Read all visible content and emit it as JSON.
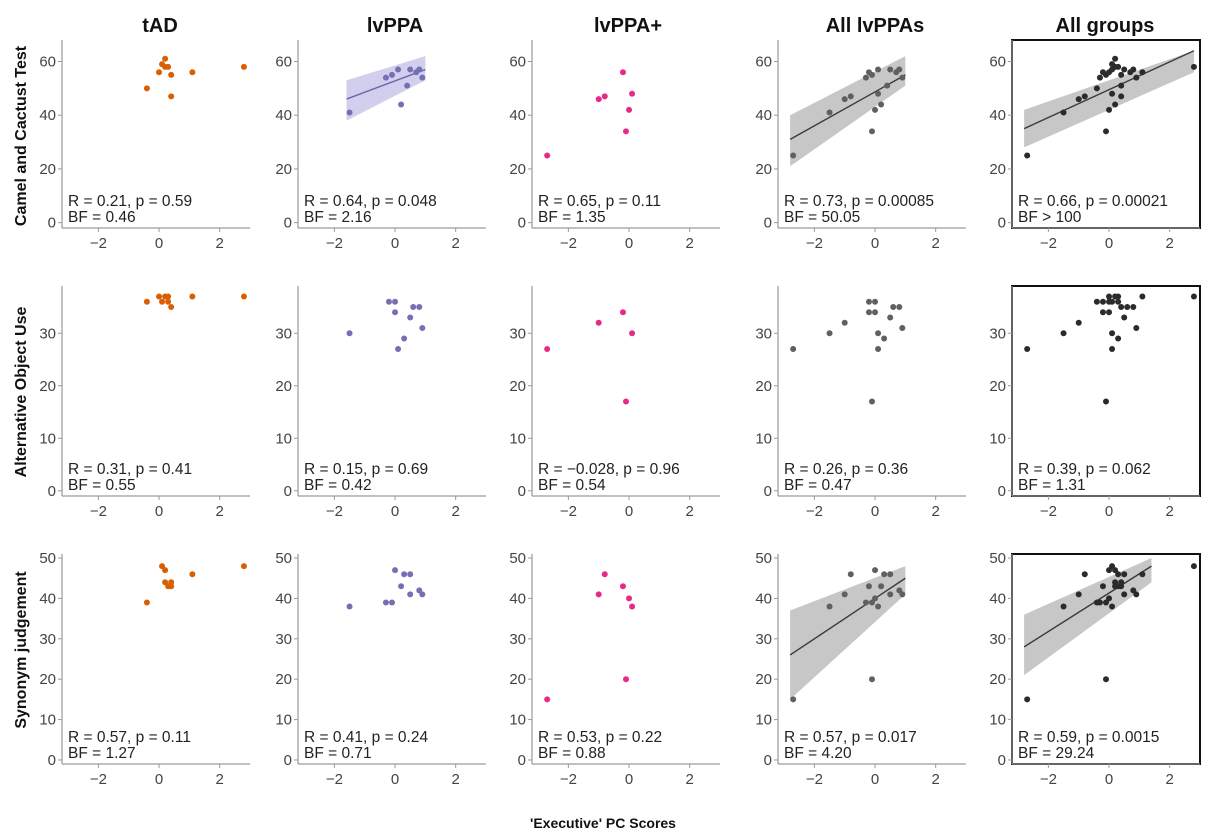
{
  "figure": {
    "x_axis_label": "'Executive' PC Scores",
    "columns": [
      "tAD",
      "lvPPA",
      "lvPPA+",
      "All lvPPAs",
      "All groups"
    ],
    "rows": [
      "Camel and Cactust Test",
      "Alternative Object Use",
      "Synonym judgement"
    ]
  },
  "colors": {
    "tAD": "#d95f02",
    "lvPPA": "#7570b3",
    "lvPPA+": "#e7298a",
    "All lvPPAs": "#606060",
    "All groups": "#2b2b2b",
    "ribbon_lvPPA": "#c9c7ea",
    "ribbon_gray": "#bdbdbd",
    "axis": "#9a9a9a"
  },
  "chart_data": [
    {
      "type": "scatter",
      "row": 0,
      "col": 0,
      "xlim": [
        -3.2,
        3.0
      ],
      "ylim": [
        -2,
        68
      ],
      "yticks": [
        0,
        20,
        40,
        60
      ],
      "xticks": [
        -2,
        0,
        2
      ],
      "points": [
        [
          -0.4,
          50
        ],
        [
          0.0,
          56
        ],
        [
          0.1,
          59
        ],
        [
          0.2,
          61
        ],
        [
          0.2,
          58
        ],
        [
          0.3,
          58
        ],
        [
          0.4,
          47
        ],
        [
          0.4,
          55
        ],
        [
          1.1,
          56
        ],
        [
          2.8,
          58
        ]
      ],
      "fit": null,
      "stat": "R = 0.21, p = 0.59",
      "bf": "BF = 0.46"
    },
    {
      "type": "scatter",
      "row": 0,
      "col": 1,
      "xlim": [
        -3.2,
        3.0
      ],
      "ylim": [
        -2,
        68
      ],
      "yticks": [
        0,
        20,
        40,
        60
      ],
      "xticks": [
        -2,
        0,
        2
      ],
      "points": [
        [
          -1.5,
          41
        ],
        [
          -0.3,
          54
        ],
        [
          -0.1,
          55
        ],
        [
          0.1,
          57
        ],
        [
          0.2,
          44
        ],
        [
          0.4,
          51
        ],
        [
          0.5,
          57
        ],
        [
          0.7,
          56
        ],
        [
          0.8,
          57
        ],
        [
          0.9,
          54
        ]
      ],
      "fit": {
        "x": [
          -1.6,
          1.0
        ],
        "y": [
          46,
          57
        ],
        "lower": [
          38,
          53
        ],
        "upper": [
          53,
          62
        ]
      },
      "stat": "R = 0.64, p = 0.048",
      "bf": "BF = 2.16"
    },
    {
      "type": "scatter",
      "row": 0,
      "col": 2,
      "xlim": [
        -3.2,
        3.0
      ],
      "ylim": [
        -2,
        68
      ],
      "yticks": [
        0,
        20,
        40,
        60
      ],
      "xticks": [
        -2,
        0,
        2
      ],
      "points": [
        [
          -2.7,
          25
        ],
        [
          -1.0,
          46
        ],
        [
          -0.8,
          47
        ],
        [
          -0.2,
          56
        ],
        [
          -0.1,
          34
        ],
        [
          0.0,
          42
        ],
        [
          0.1,
          48
        ]
      ],
      "fit": null,
      "stat": "R = 0.65, p = 0.11",
      "bf": "BF = 1.35"
    },
    {
      "type": "scatter",
      "row": 0,
      "col": 3,
      "xlim": [
        -3.2,
        3.0
      ],
      "ylim": [
        -2,
        68
      ],
      "yticks": [
        0,
        20,
        40,
        60
      ],
      "xticks": [
        -2,
        0,
        2
      ],
      "points": [
        [
          -2.7,
          25
        ],
        [
          -1.5,
          41
        ],
        [
          -1.0,
          46
        ],
        [
          -0.8,
          47
        ],
        [
          -0.3,
          54
        ],
        [
          -0.2,
          56
        ],
        [
          -0.1,
          34
        ],
        [
          -0.1,
          55
        ],
        [
          0.0,
          42
        ],
        [
          0.1,
          57
        ],
        [
          0.1,
          48
        ],
        [
          0.2,
          44
        ],
        [
          0.4,
          51
        ],
        [
          0.5,
          57
        ],
        [
          0.7,
          56
        ],
        [
          0.8,
          57
        ],
        [
          0.9,
          54
        ]
      ],
      "fit": {
        "x": [
          -2.8,
          1.0
        ],
        "y": [
          31,
          55
        ],
        "lower": [
          21,
          51
        ],
        "upper": [
          40,
          62
        ]
      },
      "stat": "R = 0.73, p = 0.00085",
      "bf": "BF = 50.05"
    },
    {
      "type": "scatter",
      "row": 0,
      "col": 4,
      "xlim": [
        -3.2,
        3.0
      ],
      "ylim": [
        -2,
        68
      ],
      "yticks": [
        0,
        20,
        40,
        60
      ],
      "xticks": [
        -2,
        0,
        2
      ],
      "points": [
        [
          -2.7,
          25
        ],
        [
          -1.5,
          41
        ],
        [
          -1.0,
          46
        ],
        [
          -0.8,
          47
        ],
        [
          -0.4,
          50
        ],
        [
          -0.3,
          54
        ],
        [
          -0.2,
          56
        ],
        [
          -0.1,
          34
        ],
        [
          -0.1,
          55
        ],
        [
          0.0,
          42
        ],
        [
          0.0,
          56
        ],
        [
          0.1,
          57
        ],
        [
          0.1,
          48
        ],
        [
          0.1,
          59
        ],
        [
          0.2,
          61
        ],
        [
          0.2,
          58
        ],
        [
          0.2,
          44
        ],
        [
          0.3,
          58
        ],
        [
          0.4,
          47
        ],
        [
          0.4,
          55
        ],
        [
          0.4,
          51
        ],
        [
          0.5,
          57
        ],
        [
          0.7,
          56
        ],
        [
          0.8,
          57
        ],
        [
          0.9,
          54
        ],
        [
          1.1,
          56
        ],
        [
          2.8,
          58
        ]
      ],
      "fit": {
        "x": [
          -2.8,
          2.8
        ],
        "y": [
          35,
          64
        ],
        "lower": [
          28,
          56
        ],
        "upper": [
          42,
          64
        ]
      },
      "stat": "R = 0.66, p = 0.00021",
      "bf": "BF > 100",
      "framed": true
    },
    {
      "type": "scatter",
      "row": 1,
      "col": 0,
      "xlim": [
        -3.2,
        3.0
      ],
      "ylim": [
        -1,
        39
      ],
      "yticks": [
        0,
        10,
        20,
        30
      ],
      "xticks": [
        -2,
        0,
        2
      ],
      "points": [
        [
          -0.4,
          36
        ],
        [
          0.0,
          37
        ],
        [
          0.1,
          36
        ],
        [
          0.2,
          37
        ],
        [
          0.3,
          37
        ],
        [
          0.3,
          36
        ],
        [
          0.4,
          35
        ],
        [
          1.1,
          37
        ],
        [
          2.8,
          37
        ]
      ],
      "fit": null,
      "stat": "R = 0.31, p = 0.41",
      "bf": "BF = 0.55"
    },
    {
      "type": "scatter",
      "row": 1,
      "col": 1,
      "xlim": [
        -3.2,
        3.0
      ],
      "ylim": [
        -1,
        39
      ],
      "yticks": [
        0,
        10,
        20,
        30
      ],
      "xticks": [
        -2,
        0,
        2
      ],
      "points": [
        [
          -1.5,
          30
        ],
        [
          -0.2,
          36
        ],
        [
          0.0,
          36
        ],
        [
          0.0,
          34
        ],
        [
          0.1,
          27
        ],
        [
          0.3,
          29
        ],
        [
          0.5,
          33
        ],
        [
          0.6,
          35
        ],
        [
          0.8,
          35
        ],
        [
          0.9,
          31
        ]
      ],
      "fit": null,
      "stat": "R = 0.15, p = 0.69",
      "bf": "BF = 0.42"
    },
    {
      "type": "scatter",
      "row": 1,
      "col": 2,
      "xlim": [
        -3.2,
        3.0
      ],
      "ylim": [
        -1,
        39
      ],
      "yticks": [
        0,
        10,
        20,
        30
      ],
      "xticks": [
        -2,
        0,
        2
      ],
      "points": [
        [
          -2.7,
          27
        ],
        [
          -1.0,
          32
        ],
        [
          -0.2,
          34
        ],
        [
          -0.1,
          17
        ],
        [
          0.1,
          30
        ]
      ],
      "fit": null,
      "stat": "R = −0.028, p = 0.96",
      "bf": "BF = 0.54"
    },
    {
      "type": "scatter",
      "row": 1,
      "col": 3,
      "xlim": [
        -3.2,
        3.0
      ],
      "ylim": [
        -1,
        39
      ],
      "yticks": [
        0,
        10,
        20,
        30
      ],
      "xticks": [
        -2,
        0,
        2
      ],
      "points": [
        [
          -2.7,
          27
        ],
        [
          -1.5,
          30
        ],
        [
          -1.0,
          32
        ],
        [
          -0.2,
          36
        ],
        [
          -0.2,
          34
        ],
        [
          -0.1,
          17
        ],
        [
          0.0,
          36
        ],
        [
          0.0,
          34
        ],
        [
          0.1,
          27
        ],
        [
          0.1,
          30
        ],
        [
          0.3,
          29
        ],
        [
          0.5,
          33
        ],
        [
          0.6,
          35
        ],
        [
          0.8,
          35
        ],
        [
          0.9,
          31
        ]
      ],
      "fit": null,
      "stat": "R = 0.26, p = 0.36",
      "bf": "BF = 0.47"
    },
    {
      "type": "scatter",
      "row": 1,
      "col": 4,
      "xlim": [
        -3.2,
        3.0
      ],
      "ylim": [
        -1,
        39
      ],
      "yticks": [
        0,
        10,
        20,
        30
      ],
      "xticks": [
        -2,
        0,
        2
      ],
      "points": [
        [
          -2.7,
          27
        ],
        [
          -1.5,
          30
        ],
        [
          -1.0,
          32
        ],
        [
          -0.4,
          36
        ],
        [
          -0.2,
          36
        ],
        [
          -0.2,
          34
        ],
        [
          -0.1,
          17
        ],
        [
          0.0,
          37
        ],
        [
          0.0,
          36
        ],
        [
          0.0,
          34
        ],
        [
          0.1,
          36
        ],
        [
          0.1,
          27
        ],
        [
          0.1,
          30
        ],
        [
          0.2,
          37
        ],
        [
          0.3,
          37
        ],
        [
          0.3,
          36
        ],
        [
          0.3,
          29
        ],
        [
          0.4,
          35
        ],
        [
          0.5,
          33
        ],
        [
          0.6,
          35
        ],
        [
          0.8,
          35
        ],
        [
          0.9,
          31
        ],
        [
          1.1,
          37
        ],
        [
          2.8,
          37
        ]
      ],
      "fit": null,
      "stat": "R = 0.39, p = 0.062",
      "bf": "BF = 1.31",
      "framed": true
    },
    {
      "type": "scatter",
      "row": 2,
      "col": 0,
      "xlim": [
        -3.2,
        3.0
      ],
      "ylim": [
        -1,
        51
      ],
      "yticks": [
        0,
        10,
        20,
        30,
        40,
        50
      ],
      "xticks": [
        -2,
        0,
        2
      ],
      "points": [
        [
          -0.4,
          39
        ],
        [
          0.1,
          48
        ],
        [
          0.2,
          44
        ],
        [
          0.2,
          47
        ],
        [
          0.3,
          43
        ],
        [
          0.4,
          44
        ],
        [
          0.4,
          43
        ],
        [
          1.1,
          46
        ],
        [
          2.8,
          48
        ]
      ],
      "fit": null,
      "stat": "R = 0.57, p = 0.11",
      "bf": "BF = 1.27"
    },
    {
      "type": "scatter",
      "row": 2,
      "col": 1,
      "xlim": [
        -3.2,
        3.0
      ],
      "ylim": [
        -1,
        51
      ],
      "yticks": [
        0,
        10,
        20,
        30,
        40,
        50
      ],
      "xticks": [
        -2,
        0,
        2
      ],
      "points": [
        [
          -1.5,
          38
        ],
        [
          -0.3,
          39
        ],
        [
          -0.1,
          39
        ],
        [
          0.0,
          47
        ],
        [
          0.2,
          43
        ],
        [
          0.3,
          46
        ],
        [
          0.5,
          41
        ],
        [
          0.5,
          46
        ],
        [
          0.8,
          42
        ],
        [
          0.9,
          41
        ]
      ],
      "fit": null,
      "stat": "R = 0.41, p = 0.24",
      "bf": "BF = 0.71"
    },
    {
      "type": "scatter",
      "row": 2,
      "col": 2,
      "xlim": [
        -3.2,
        3.0
      ],
      "ylim": [
        -1,
        51
      ],
      "yticks": [
        0,
        10,
        20,
        30,
        40,
        50
      ],
      "xticks": [
        -2,
        0,
        2
      ],
      "points": [
        [
          -2.7,
          15
        ],
        [
          -1.0,
          41
        ],
        [
          -0.8,
          46
        ],
        [
          -0.2,
          43
        ],
        [
          -0.1,
          20
        ],
        [
          0.0,
          40
        ],
        [
          0.1,
          38
        ]
      ],
      "fit": null,
      "stat": "R = 0.53, p = 0.22",
      "bf": "BF = 0.88"
    },
    {
      "type": "scatter",
      "row": 2,
      "col": 3,
      "xlim": [
        -3.2,
        3.0
      ],
      "ylim": [
        -1,
        51
      ],
      "yticks": [
        0,
        10,
        20,
        30,
        40,
        50
      ],
      "xticks": [
        -2,
        0,
        2
      ],
      "points": [
        [
          -2.7,
          15
        ],
        [
          -1.5,
          38
        ],
        [
          -1.0,
          41
        ],
        [
          -0.8,
          46
        ],
        [
          -0.3,
          39
        ],
        [
          -0.2,
          43
        ],
        [
          -0.1,
          20
        ],
        [
          -0.1,
          39
        ],
        [
          0.0,
          40
        ],
        [
          0.0,
          47
        ],
        [
          0.1,
          38
        ],
        [
          0.2,
          43
        ],
        [
          0.3,
          46
        ],
        [
          0.5,
          41
        ],
        [
          0.5,
          46
        ],
        [
          0.8,
          42
        ],
        [
          0.9,
          41
        ]
      ],
      "fit": {
        "x": [
          -2.8,
          1.0
        ],
        "y": [
          26,
          45
        ],
        "lower": [
          15,
          41
        ],
        "upper": [
          37,
          48
        ]
      },
      "stat": "R = 0.57, p = 0.017",
      "bf": "BF = 4.20"
    },
    {
      "type": "scatter",
      "row": 2,
      "col": 4,
      "xlim": [
        -3.2,
        3.0
      ],
      "ylim": [
        -1,
        51
      ],
      "yticks": [
        0,
        10,
        20,
        30,
        40,
        50
      ],
      "xticks": [
        -2,
        0,
        2
      ],
      "points": [
        [
          -2.7,
          15
        ],
        [
          -1.5,
          38
        ],
        [
          -1.0,
          41
        ],
        [
          -0.8,
          46
        ],
        [
          -0.4,
          39
        ],
        [
          -0.3,
          39
        ],
        [
          -0.2,
          43
        ],
        [
          -0.1,
          20
        ],
        [
          -0.1,
          39
        ],
        [
          0.0,
          40
        ],
        [
          0.0,
          47
        ],
        [
          0.1,
          48
        ],
        [
          0.1,
          38
        ],
        [
          0.2,
          44
        ],
        [
          0.2,
          47
        ],
        [
          0.2,
          43
        ],
        [
          0.3,
          43
        ],
        [
          0.3,
          46
        ],
        [
          0.4,
          44
        ],
        [
          0.4,
          43
        ],
        [
          0.5,
          41
        ],
        [
          0.5,
          46
        ],
        [
          0.8,
          42
        ],
        [
          0.9,
          41
        ],
        [
          1.1,
          46
        ],
        [
          2.8,
          48
        ]
      ],
      "fit": {
        "x": [
          -2.8,
          1.4
        ],
        "y": [
          28,
          48
        ],
        "lower": [
          21,
          44
        ],
        "upper": [
          36,
          50
        ]
      },
      "stat": "R = 0.59, p = 0.0015",
      "bf": "BF = 29.24",
      "framed": true
    }
  ]
}
